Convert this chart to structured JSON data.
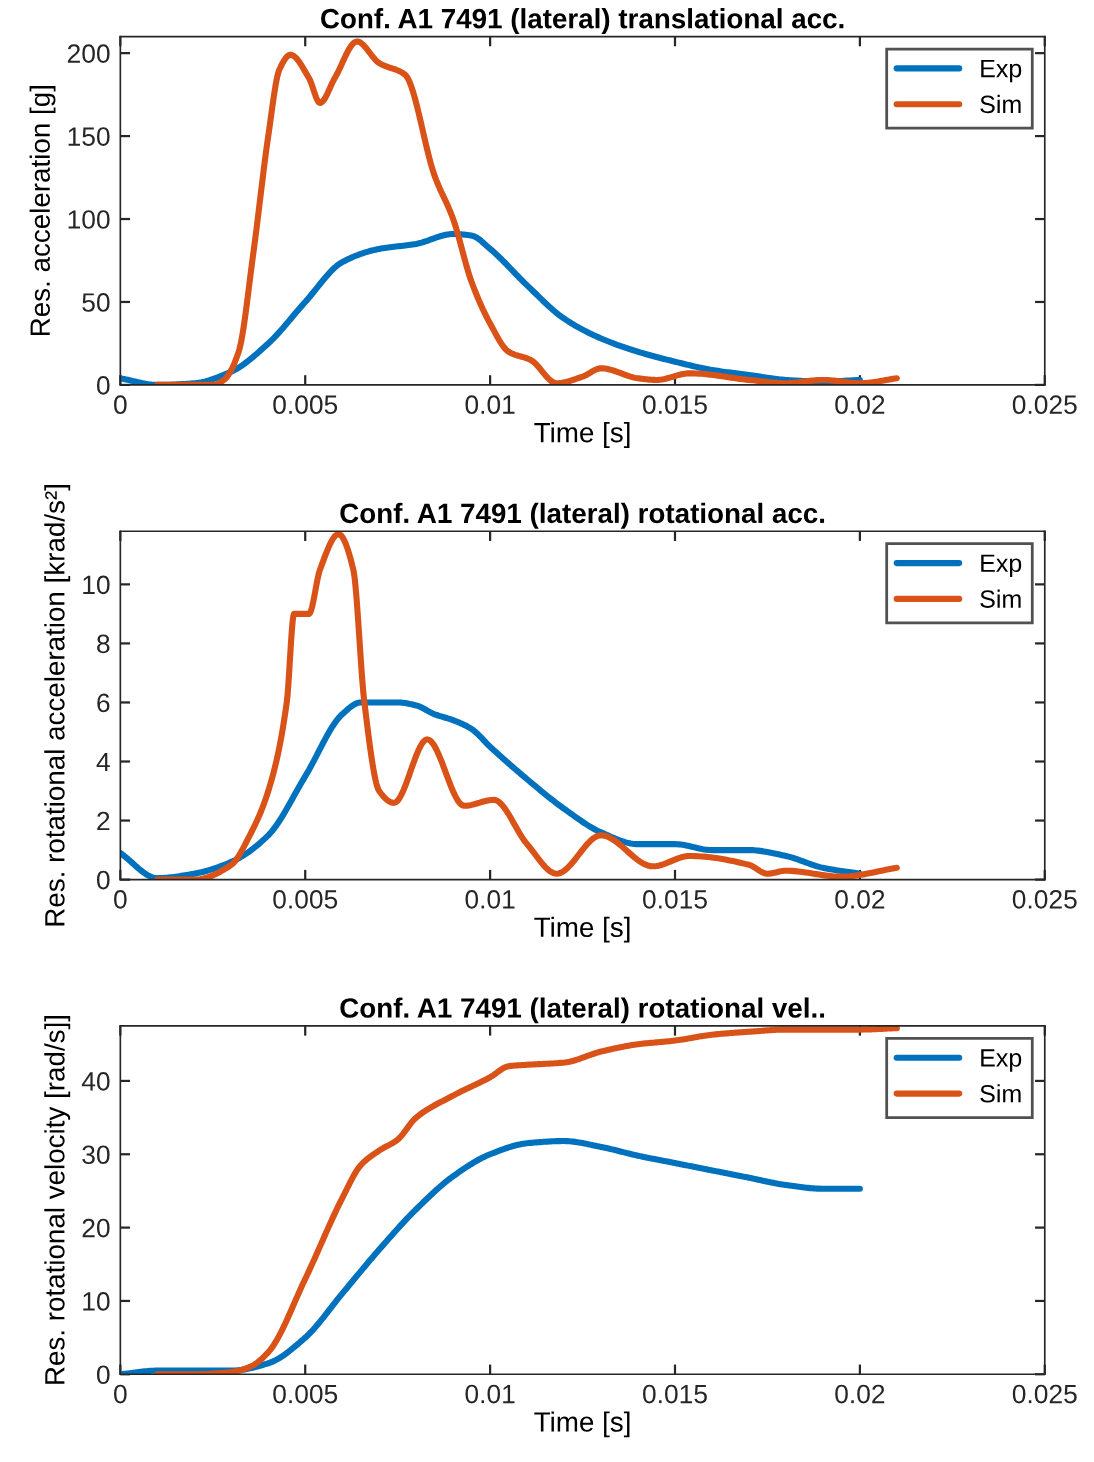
{
  "chart_data": [
    {
      "type": "line",
      "title": "Conf. A1 7491 (lateral) translational acc.",
      "xlabel": "Time [s]",
      "ylabel": "Res. acceleration [g]",
      "xlim": [
        0,
        0.025
      ],
      "xticks": [
        0,
        0.005,
        0.01,
        0.015,
        0.02,
        0.025
      ],
      "ylim": [
        0,
        210
      ],
      "yticks": [
        0,
        50,
        100,
        150,
        200
      ],
      "grid": false,
      "legend": "top right",
      "line_style": "solid",
      "series": [
        {
          "name": "Exp",
          "color": "#0072bd",
          "x": [
            0,
            0.001,
            0.002,
            0.003,
            0.004,
            0.005,
            0.006,
            0.007,
            0.008,
            0.009,
            0.0095,
            0.01,
            0.011,
            0.012,
            0.013,
            0.014,
            0.015,
            0.016,
            0.017,
            0.018,
            0.019,
            0.02
          ],
          "values": [
            4,
            0,
            1,
            8,
            25,
            50,
            74,
            82,
            85,
            91,
            90,
            82,
            60,
            40,
            28,
            20,
            14,
            9,
            6,
            3,
            2,
            3
          ]
        },
        {
          "name": "Sim",
          "color": "#d95319",
          "x": [
            0.001,
            0.002,
            0.0025,
            0.0028,
            0.0032,
            0.0036,
            0.004,
            0.0043,
            0.0046,
            0.0051,
            0.0054,
            0.0058,
            0.0064,
            0.007,
            0.0077,
            0.0085,
            0.009,
            0.0095,
            0.01,
            0.0105,
            0.0111,
            0.0118,
            0.0125,
            0.013,
            0.014,
            0.0145,
            0.0154,
            0.017,
            0.018,
            0.019,
            0.02,
            0.021
          ],
          "values": [
            0,
            0,
            0,
            3,
            20,
            80,
            150,
            190,
            199,
            185,
            170,
            185,
            207,
            194,
            187,
            126,
            100,
            62,
            37,
            20,
            15,
            1,
            5,
            10,
            4,
            3,
            7,
            3,
            1,
            3,
            1,
            4
          ]
        }
      ]
    },
    {
      "type": "line",
      "title": "Conf. A1 7491 (lateral) rotational acc.",
      "xlabel": "Time [s]",
      "ylabel": "Res. rotational acceleration [krad/s²]",
      "xlim": [
        0,
        0.025
      ],
      "xticks": [
        0,
        0.005,
        0.01,
        0.015,
        0.02,
        0.025
      ],
      "ylim": [
        0,
        11.8
      ],
      "yticks": [
        0,
        2,
        4,
        6,
        8,
        10
      ],
      "grid": false,
      "legend": "top right",
      "line_style": "solid",
      "series": [
        {
          "name": "Exp",
          "color": "#0072bd",
          "x": [
            0,
            0.001,
            0.002,
            0.003,
            0.004,
            0.005,
            0.006,
            0.0065,
            0.0075,
            0.008,
            0.0085,
            0.009,
            0.0095,
            0.01,
            0.011,
            0.012,
            0.013,
            0.014,
            0.015,
            0.016,
            0.017,
            0.018,
            0.019,
            0.02
          ],
          "values": [
            0.9,
            0.05,
            0.2,
            0.6,
            1.5,
            3.5,
            5.6,
            6,
            6,
            5.9,
            5.6,
            5.4,
            5.1,
            4.5,
            3.4,
            2.4,
            1.6,
            1.2,
            1.2,
            1.0,
            1.0,
            0.8,
            0.4,
            0.2
          ]
        },
        {
          "name": "Sim",
          "color": "#d95319",
          "x": [
            0.001,
            0.002,
            0.003,
            0.0035,
            0.004,
            0.0045,
            0.0047,
            0.0051,
            0.0054,
            0.0059,
            0.0063,
            0.0066,
            0.007,
            0.0074,
            0.0083,
            0.0093,
            0.0101,
            0.011,
            0.0118,
            0.013,
            0.0144,
            0.0154,
            0.017,
            0.0175,
            0.018,
            0.0195,
            0.021
          ],
          "values": [
            0,
            0,
            0.5,
            1.5,
            3,
            6,
            9,
            9,
            10.5,
            11.7,
            10.5,
            6,
            3,
            2.6,
            4.75,
            2.5,
            2.7,
            1.2,
            0.2,
            1.5,
            0.45,
            0.8,
            0.5,
            0.2,
            0.3,
            0.1,
            0.4
          ]
        }
      ]
    },
    {
      "type": "line",
      "title": "Conf. A1 7491 (lateral) rotational vel..",
      "xlabel": "Time [s]",
      "ylabel": "Res. rotational velocity [rad/s]]",
      "xlim": [
        0,
        0.025
      ],
      "xticks": [
        0,
        0.005,
        0.01,
        0.015,
        0.02,
        0.025
      ],
      "ylim": [
        0,
        47.5
      ],
      "yticks": [
        0,
        10,
        20,
        30,
        40
      ],
      "grid": false,
      "legend": "top right",
      "line_style": "solid",
      "series": [
        {
          "name": "Exp",
          "color": "#0072bd",
          "x": [
            0,
            0.001,
            0.003,
            0.004,
            0.005,
            0.006,
            0.007,
            0.008,
            0.009,
            0.01,
            0.011,
            0.012,
            0.013,
            0.014,
            0.015,
            0.016,
            0.017,
            0.018,
            0.019,
            0.02
          ],
          "values": [
            0,
            0.5,
            0.5,
            1.5,
            5,
            11,
            17,
            22.5,
            27,
            30,
            31.5,
            31.8,
            31,
            29.8,
            28.8,
            27.8,
            26.8,
            25.8,
            25.3,
            25.3
          ]
        },
        {
          "name": "Sim",
          "color": "#d95319",
          "x": [
            0.001,
            0.002,
            0.003,
            0.0035,
            0.004,
            0.005,
            0.006,
            0.0065,
            0.007,
            0.0075,
            0.008,
            0.009,
            0.01,
            0.0105,
            0.011,
            0.012,
            0.013,
            0.014,
            0.015,
            0.016,
            0.017,
            0.018,
            0.019,
            0.02,
            0.021
          ],
          "values": [
            0,
            0,
            0.3,
            1,
            3,
            13,
            24,
            28.5,
            30.5,
            32,
            35,
            38,
            40.5,
            42,
            42.2,
            42.5,
            44,
            45,
            45.5,
            46.3,
            46.7,
            47,
            47,
            47,
            47.2
          ]
        }
      ]
    }
  ]
}
